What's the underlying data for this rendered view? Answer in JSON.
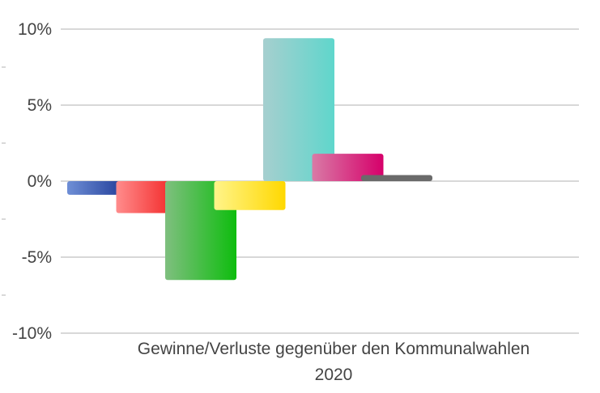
{
  "chart_data": {
    "type": "bar",
    "xlabel_lines": [
      "Gewinne/Verluste gegenüber den Kommunalwahlen",
      "2020"
    ],
    "ylim": [
      -10,
      10
    ],
    "yticks": [
      {
        "value": 10,
        "label": "10%"
      },
      {
        "value": 5,
        "label": "5%"
      },
      {
        "value": 0,
        "label": "0%"
      },
      {
        "value": -5,
        "label": "-5%"
      },
      {
        "value": -10,
        "label": "-10%"
      }
    ],
    "grid": true,
    "bars": [
      {
        "value": -0.9,
        "color_light": "#6f8fd6",
        "color_dark": "#0f2a8a"
      },
      {
        "value": -2.1,
        "color_light": "#ff8c8c",
        "color_dark": "#f01010"
      },
      {
        "value": -6.5,
        "color_light": "#7fbf7f",
        "color_dark": "#0ebd0e"
      },
      {
        "value": -1.9,
        "color_light": "#fff48a",
        "color_dark": "#ffd800"
      },
      {
        "value": 9.4,
        "color_light": "#a6cfcf",
        "color_dark": "#5fd6cc"
      },
      {
        "value": 1.8,
        "color_light": "#d97aa6",
        "color_dark": "#d6006a"
      },
      {
        "value": 0.4,
        "color_light": "#6a6a6a",
        "color_dark": "#6a6a6a"
      }
    ]
  }
}
